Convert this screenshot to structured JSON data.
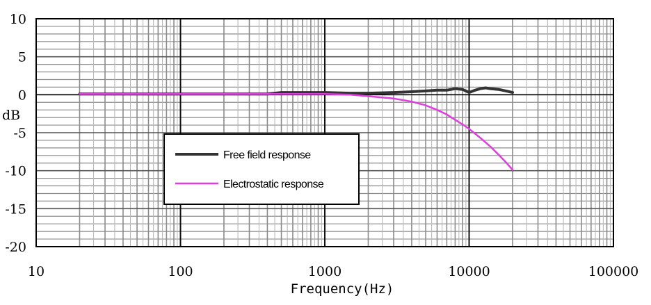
{
  "chart_data": {
    "type": "line",
    "title": "",
    "xlabel": "Frequency(Hz)",
    "ylabel": "dB",
    "x_scale": "log",
    "xlim": [
      10,
      100000
    ],
    "ylim": [
      -20,
      10
    ],
    "x_ticks": [
      "10",
      "100",
      "1000",
      "10000",
      "100000"
    ],
    "y_ticks": [
      "10",
      "5",
      "0",
      "-5",
      "-10",
      "-15",
      "-20"
    ],
    "grid": true,
    "legend": {
      "position": "lower-left",
      "entries": [
        "Free field response",
        "Electrostatic response"
      ]
    },
    "series": [
      {
        "name": "Free field response",
        "color": "#333333",
        "x": [
          20,
          100,
          400,
          500,
          1000,
          1500,
          2000,
          3000,
          4000,
          5000,
          6000,
          7000,
          8000,
          9000,
          10000,
          11000,
          12000,
          13000,
          14000,
          16000,
          18000,
          20000
        ],
        "y": [
          0.1,
          0.1,
          0.1,
          0.3,
          0.3,
          0.2,
          0.2,
          0.3,
          0.4,
          0.5,
          0.6,
          0.6,
          0.8,
          0.7,
          0.3,
          0.6,
          0.8,
          0.9,
          0.8,
          0.7,
          0.5,
          0.3
        ]
      },
      {
        "name": "Electrostatic response",
        "color": "#e03ce0",
        "x": [
          20,
          100,
          500,
          1000,
          1500,
          2000,
          3000,
          4000,
          5000,
          6000,
          7000,
          8000,
          9000,
          10000,
          12000,
          14000,
          16000,
          18000,
          20000
        ],
        "y": [
          0.1,
          0.1,
          0.1,
          0.1,
          0.0,
          -0.2,
          -0.5,
          -0.9,
          -1.4,
          -2.0,
          -2.6,
          -3.3,
          -3.9,
          -4.5,
          -5.7,
          -6.8,
          -7.9,
          -8.9,
          -9.9
        ]
      }
    ]
  }
}
